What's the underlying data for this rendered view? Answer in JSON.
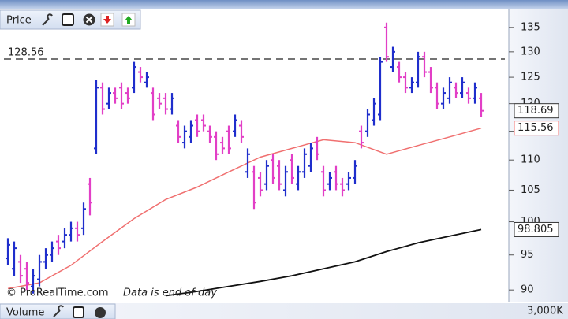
{
  "chart_data": {
    "type": "ohlc",
    "title": "Price",
    "log_scale": true,
    "ylim": [
      88.5,
      138.8
    ],
    "yticks": [
      90,
      95,
      100,
      105,
      110,
      115,
      120,
      125,
      130,
      135
    ],
    "up_color": "#1f2ecc",
    "down_color": "#e23fc6",
    "open": [
      94.5,
      93,
      94,
      93,
      90.5,
      91.5,
      94,
      95,
      97,
      97,
      98,
      99,
      99,
      106,
      112,
      123,
      120,
      122,
      123,
      122,
      123,
      126,
      124,
      122,
      121,
      121,
      119,
      116,
      113,
      114,
      117,
      117,
      115,
      114,
      113,
      115,
      115,
      116,
      108,
      108,
      107,
      106,
      110,
      109,
      105,
      110,
      106,
      108,
      109,
      113,
      108,
      106,
      108,
      106,
      106,
      107,
      115,
      115,
      117,
      118,
      135,
      127,
      127,
      125,
      123,
      124,
      129,
      126,
      123,
      120,
      121,
      123,
      122,
      122,
      121,
      121
    ],
    "high": [
      97.5,
      97,
      95,
      94,
      93,
      95,
      96,
      97,
      98,
      99,
      100,
      100,
      103,
      107,
      124.5,
      124,
      123,
      123,
      124,
      123,
      128,
      127,
      126,
      123,
      122,
      122,
      122,
      117,
      116,
      117,
      118,
      118,
      116,
      115,
      114,
      116,
      118,
      117,
      112,
      109,
      108,
      110,
      111,
      110,
      109,
      111,
      109,
      112,
      113,
      114,
      109,
      108,
      109,
      107,
      108,
      110,
      116,
      119,
      121,
      129,
      136,
      131,
      128,
      126,
      125,
      130,
      130,
      127,
      124,
      123,
      125,
      124,
      125,
      123,
      124,
      122
    ],
    "low": [
      93.5,
      92,
      91,
      90,
      89.5,
      90.5,
      93,
      94,
      95,
      96,
      97,
      97,
      98,
      101,
      111,
      118,
      119,
      120,
      119,
      120,
      122,
      124,
      123,
      117,
      119,
      118,
      118,
      113,
      112,
      113,
      114,
      115,
      113,
      110,
      111,
      111,
      114,
      113,
      107,
      102,
      104,
      105,
      106,
      105,
      104,
      106,
      105,
      107,
      108,
      110,
      104,
      105,
      105,
      104,
      105,
      106,
      112,
      114,
      116,
      117,
      128,
      126,
      124,
      122,
      122,
      123,
      125,
      122,
      119,
      119,
      120,
      121,
      121,
      120,
      120,
      117.5
    ],
    "close": [
      96.5,
      96,
      92,
      91,
      92,
      94,
      95,
      96,
      96,
      98,
      99,
      98,
      102,
      103,
      123,
      119,
      122,
      121,
      120,
      121,
      127,
      125,
      125,
      118,
      120,
      119,
      121,
      114,
      115,
      116,
      115,
      116,
      114,
      111,
      112,
      112,
      117,
      114,
      111,
      103,
      105,
      109,
      107,
      106,
      108,
      107,
      108,
      111,
      112,
      111,
      105,
      107,
      106,
      105,
      107,
      109,
      113,
      118,
      120,
      128,
      129,
      130,
      125,
      123,
      124,
      129,
      126,
      123,
      120,
      122,
      124,
      122,
      124,
      121,
      123,
      118.69
    ],
    "moving_averages": [
      {
        "color": "#f07070",
        "x": [
          0,
          5,
          10,
          15,
          20,
          25,
          30,
          35,
          40,
          45,
          50,
          55,
          60,
          65,
          70,
          75
        ],
        "values": [
          90.2,
          91,
          93.5,
          97,
          100.5,
          103.5,
          105.5,
          108,
          110.5,
          112,
          113.5,
          113,
          111,
          112.5,
          114,
          115.56
        ]
      },
      {
        "color": "#111111",
        "x": [
          25,
          30,
          35,
          40,
          45,
          50,
          55,
          60,
          65,
          70,
          75
        ],
        "values": [
          89.2,
          89.8,
          90.5,
          91.2,
          92,
          93,
          94,
          95.5,
          96.8,
          97.8,
          98.805
        ]
      }
    ],
    "reference_line": 128.56,
    "source": "© ProRealTime.com",
    "note": "Data is end of day",
    "volume_panel": {
      "title": "Volume",
      "tick_label": "3,000K"
    }
  }
}
